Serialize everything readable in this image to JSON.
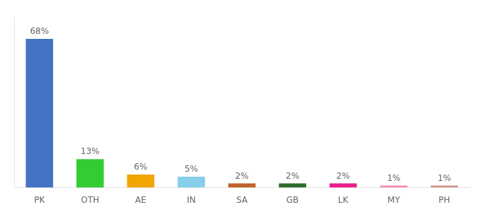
{
  "chart_data": {
    "type": "bar",
    "categories": [
      "PK",
      "OTH",
      "AE",
      "IN",
      "SA",
      "GB",
      "LK",
      "MY",
      "PH"
    ],
    "values": [
      68,
      13,
      6,
      5,
      2,
      2,
      2,
      1,
      1
    ],
    "value_labels": [
      "68%",
      "13%",
      "6%",
      "5%",
      "2%",
      "2%",
      "2%",
      "1%",
      "1%"
    ],
    "colors": [
      "#4472c4",
      "#33cc33",
      "#f0a500",
      "#87ceeb",
      "#c0622a",
      "#2d6e2d",
      "#e91e8c",
      "#f48fb1",
      "#d4948a"
    ],
    "ylim": [
      0,
      78
    ],
    "grid": false,
    "data_labels": true,
    "tick_labels": "x"
  }
}
